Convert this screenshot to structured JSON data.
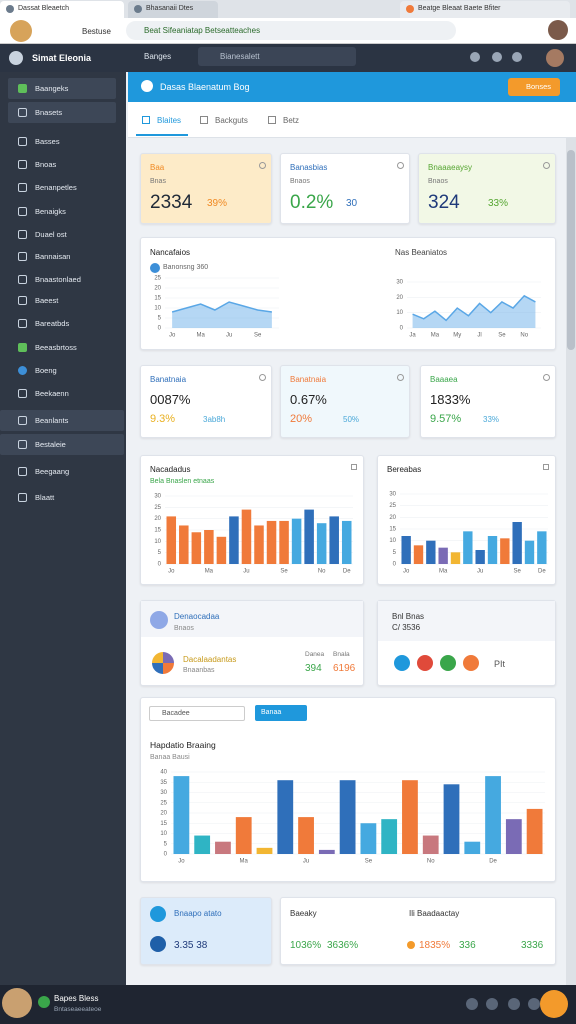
{
  "browser": {
    "tabs": [
      "Dassat Bleaetch",
      "Bhasanaii Dtes",
      "Beatge Bleaat Baete Bfiter"
    ],
    "nav": "Bestuse",
    "url": "Beat Sifeaniatap Betseatteaches"
  },
  "app": {
    "name": "Simat Eleonia",
    "menu": "Banges",
    "search": "Bianesalett"
  },
  "sidebar": [
    "Baangeks",
    "Bnasets",
    "Basses",
    "Bnoas",
    "Benanpetles",
    "Benaigks",
    "Duael ost",
    "Bannaisan",
    "Bnaastonlaed",
    "Baeest",
    "Bareatbds",
    "Beeasbrtoss",
    "Boeng",
    "Beekaenn",
    "Beanlants",
    "Bestaleie",
    "Beegaang",
    "Blaatt"
  ],
  "header": {
    "title": "Dasas Blaenatum Bog",
    "button": "Bonses"
  },
  "tabs": [
    "Blaites",
    "Backguts",
    "Betz"
  ],
  "kpi_top": [
    {
      "title": "Baa",
      "sub": "Bnas",
      "value": "2334",
      "change": "39%",
      "bg": "#fdebc8",
      "accent": "#f08a24",
      "value_color": "#1f2937"
    },
    {
      "title": "Banasbias",
      "sub": "Bnaos",
      "value": "0.2%",
      "change": "30",
      "bg": "#ffffff",
      "accent": "#2f6fba",
      "value_color": "#3aa64a"
    },
    {
      "title": "Bnaaaeaysy",
      "sub": "Bnaos",
      "value": "324",
      "change": "33%",
      "bg": "#f2f8e6",
      "accent": "#56a632",
      "value_color": "#1f3a7a"
    }
  ],
  "kpi_mid": [
    {
      "title": "Banatnaia",
      "value": "0087%",
      "change": "9.3%",
      "extra": "3ab8h",
      "bg": "#ffffff",
      "accent": "#2f6fba",
      "change_color": "#e9b020"
    },
    {
      "title": "Banatnaia",
      "value": "0.67%",
      "change": "20%",
      "extra": "50%",
      "bg": "#f0f8fc",
      "accent": "#f07a3a",
      "change_color": "#f07a3a"
    },
    {
      "title": "Baaaea",
      "value": "1833%",
      "change": "9.57%",
      "extra": "33%",
      "bg": "#ffffff",
      "accent": "#3aa64a",
      "change_color": "#3aa64a"
    }
  ],
  "charts": [
    {
      "type": "area",
      "title": "Nancafaios",
      "subtitle": "Banonsng 360",
      "color": "#5aa7e6",
      "categories": [
        "Jo",
        null,
        "Ma",
        null,
        "Ju",
        null,
        "Se",
        null
      ],
      "values": [
        8,
        10,
        12,
        9,
        13,
        11,
        9,
        8
      ],
      "ylim": [
        0,
        25
      ],
      "yticks": [
        0,
        5,
        10,
        15,
        20,
        25
      ]
    },
    {
      "type": "area",
      "title": "Nas Beaniatos",
      "color": "#5aa7e6",
      "categories": [
        "Ja",
        null,
        "Ma",
        null,
        "My",
        null,
        "Jl",
        null,
        "Se",
        null,
        "No",
        null
      ],
      "values": [
        9,
        6,
        11,
        5,
        13,
        8,
        16,
        10,
        17,
        13,
        21,
        17
      ],
      "ylim": [
        0,
        30
      ],
      "yticks": [
        0,
        10,
        20,
        30
      ]
    },
    {
      "type": "bar",
      "title": "Nacadadus",
      "subtitle": "Bela Bnaslen etnaas",
      "categories": [
        "Jo",
        null,
        null,
        "Ma",
        null,
        null,
        "Ju",
        null,
        null,
        "Se",
        null,
        null,
        "No",
        null,
        "De"
      ],
      "values": [
        21,
        17,
        14,
        15,
        12,
        21,
        24,
        17,
        19,
        19,
        20,
        24,
        18,
        21,
        19
      ],
      "colors": [
        "#f07a3a",
        "#f07a3a",
        "#f07a3a",
        "#f07a3a",
        "#f07a3a",
        "#2f6fba",
        "#f07a3a",
        "#f07a3a",
        "#f07a3a",
        "#f07a3a",
        "#45a9e0",
        "#2f6fba",
        "#45a9e0",
        "#2f6fba",
        "#45a9e0"
      ],
      "ylim": [
        0,
        30
      ],
      "yticks": [
        0,
        5,
        10,
        15,
        20,
        25,
        30
      ]
    },
    {
      "type": "bar",
      "title": "Bereabas",
      "categories": [
        "Jo",
        null,
        null,
        "Ma",
        null,
        null,
        "Ju",
        null,
        null,
        "Se",
        null,
        "De"
      ],
      "values": [
        12,
        8,
        10,
        7,
        5,
        14,
        6,
        12,
        11,
        18,
        10,
        14
      ],
      "colors": [
        "#2f6fba",
        "#f07a3a",
        "#2f6fba",
        "#7a6bb5",
        "#f2b632",
        "#45a9e0",
        "#2f6fba",
        "#45a9e0",
        "#f07a3a",
        "#2f6fba",
        "#45a9e0",
        "#45a9e0"
      ],
      "ylim": [
        0,
        30
      ],
      "yticks": [
        0,
        5,
        10,
        15,
        20,
        25,
        30
      ]
    },
    {
      "type": "bar",
      "title": "Hapdatio Braaing",
      "subtitle": "Banaa Bausi",
      "categories": [
        "Jo",
        null,
        null,
        "Ma",
        null,
        null,
        "Ju",
        null,
        null,
        "Se",
        null,
        null,
        "No",
        null,
        null,
        "De",
        null,
        null
      ],
      "values": [
        38,
        9,
        6,
        18,
        3,
        36,
        18,
        2,
        36,
        15,
        17,
        36,
        9,
        34,
        6,
        38,
        17,
        22
      ],
      "colors": [
        "#45a9e0",
        "#2fb4c4",
        "#c8787e",
        "#f07a3a",
        "#f2b632",
        "#2f6fba",
        "#f07a3a",
        "#7a6bb5",
        "#2f6fba",
        "#45a9e0",
        "#2fb4c4",
        "#f07a3a",
        "#c8787e",
        "#2f6fba",
        "#45a9e0",
        "#45a9e0",
        "#7a6bb5",
        "#f07a3a"
      ],
      "ylim": [
        0,
        40
      ],
      "yticks": [
        0,
        5,
        10,
        15,
        20,
        25,
        30,
        35,
        40
      ]
    }
  ],
  "filter": {
    "select": "Bacadee",
    "button": "Banaa"
  },
  "row5": {
    "left_title": "Denaocadaa",
    "left_sub": "Bnaos",
    "item_title": "Dacalaadantas",
    "item_sub": "Bnaanbas",
    "stat_labels": [
      "Danea",
      "Bnala"
    ],
    "stat_values": [
      "394",
      "6196"
    ],
    "right_title": "Bnl Bnas",
    "right_value": "C/ 3536",
    "right_tag": "PIt"
  },
  "row7": {
    "left_title": "Bnaapo atato",
    "left_value": "3.35 38",
    "right_title": "Baeaky",
    "right_sub": "Ili Baadaactay",
    "right_values": [
      "1036%",
      "3636%",
      "1835%",
      "336",
      "3336"
    ]
  },
  "user": {
    "name": "Bapes Bless",
    "status": "Bntaseaeeateoe"
  }
}
